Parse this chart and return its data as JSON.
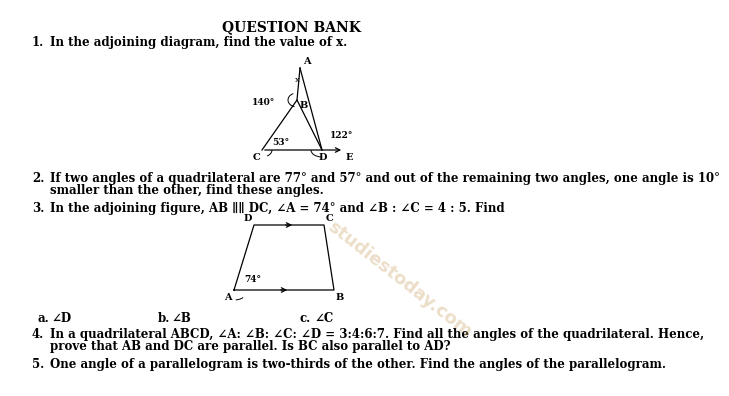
{
  "title": "QUESTION BANK",
  "q1_text": "In the adjoining diagram, find the value of x.",
  "q2_text": "If two angles of a quadrilateral are 77° and 57° and out of the remaining two angles, one angle is 10°",
  "q2_text2": "smaller than the other, find these angles.",
  "q3_text": "In the adjoining figure, AB ∥∥ DC, ∠A = 74° and ∠B : ∠C = 4 : 5. Find",
  "q4_text": "In a quadrilateral ABCD, ∠A: ∠B: ∠C: ∠D = 3:4:6:7. Find all the angles of the quadrilateral. Hence,",
  "q4_text2": "prove that AB and DC are parallel. Is BC also parallel to AD?",
  "q5_text": "One angle of a parallelogram is two-thirds of the other. Find the angles of the parallelogram.",
  "bg_color": "#ffffff",
  "text_color": "#000000"
}
